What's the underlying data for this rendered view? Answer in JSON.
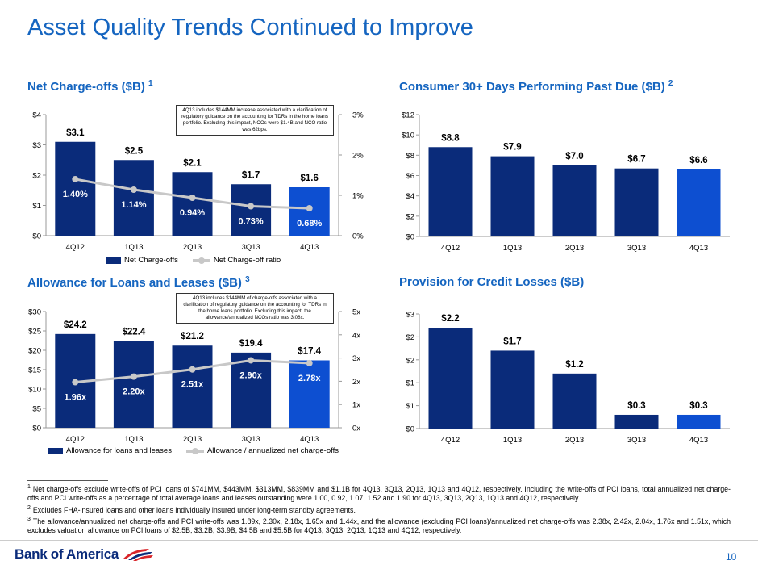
{
  "title": "Asset Quality Trends Continued to Improve",
  "colors": {
    "bar": "#0a2b7a",
    "bar_highlight": "#0d4fd1",
    "line": "#c8c8c8",
    "title": "#1565c0"
  },
  "sections": {
    "nco": {
      "title": "Net Charge-offs ($B)",
      "sup": "1"
    },
    "past_due": {
      "title": "Consumer 30+ Days Performing Past Due ($B)",
      "sup": "2"
    },
    "allowance": {
      "title": "Allowance for Loans and Leases ($B)",
      "sup": "3"
    },
    "provision": {
      "title": "Provision for Credit Losses ($B)",
      "sup": ""
    }
  },
  "callouts": {
    "nco": "4Q13 includes $144MM increase associated with a clarification of regulatory guidance on the accounting for TDRs in the home loans portfolio. Excluding this impact, NCOs were $1.4B and NCO ratio was 62bps.",
    "allowance": "4Q13 includes $144MM of charge-offs associated with a clarification of regulatory guidance on the accounting for TDRs in the home loans portfolio. Excluding this impact, the allowance/annualized NCOs ratio was 3.08x."
  },
  "chart_data": [
    {
      "id": "nco",
      "type": "bar",
      "categories": [
        "4Q12",
        "1Q13",
        "2Q13",
        "3Q13",
        "4Q13"
      ],
      "values": [
        3.1,
        2.5,
        2.1,
        1.7,
        1.6
      ],
      "value_labels": [
        "$3.1",
        "$2.5",
        "$2.1",
        "$1.7",
        "$1.6"
      ],
      "ylim": [
        0,
        4
      ],
      "yticks": [
        "$0",
        "$1",
        "$2",
        "$3",
        "$4"
      ],
      "secondary": {
        "type": "line",
        "values": [
          1.4,
          1.14,
          0.94,
          0.73,
          0.68
        ],
        "value_labels": [
          "1.40%",
          "1.14%",
          "0.94%",
          "0.73%",
          "0.68%"
        ],
        "ylim": [
          0,
          3
        ],
        "yticks": [
          "0%",
          "1%",
          "2%",
          "3%"
        ]
      },
      "legend": [
        "Net Charge-offs",
        "Net Charge-off ratio"
      ]
    },
    {
      "id": "past_due",
      "type": "bar",
      "categories": [
        "4Q12",
        "1Q13",
        "2Q13",
        "3Q13",
        "4Q13"
      ],
      "values": [
        8.8,
        7.9,
        7.0,
        6.7,
        6.6
      ],
      "value_labels": [
        "$8.8",
        "$7.9",
        "$7.0",
        "$6.7",
        "$6.6"
      ],
      "ylim": [
        0,
        12
      ],
      "yticks": [
        "$0",
        "$2",
        "$4",
        "$6",
        "$8",
        "$10",
        "$12"
      ]
    },
    {
      "id": "allowance",
      "type": "bar",
      "categories": [
        "4Q12",
        "1Q13",
        "2Q13",
        "3Q13",
        "4Q13"
      ],
      "values": [
        24.2,
        22.4,
        21.2,
        19.4,
        17.4
      ],
      "value_labels": [
        "$24.2",
        "$22.4",
        "$21.2",
        "$19.4",
        "$17.4"
      ],
      "ylim": [
        0,
        30
      ],
      "yticks": [
        "$0",
        "$5",
        "$10",
        "$15",
        "$20",
        "$25",
        "$30"
      ],
      "secondary": {
        "type": "line",
        "values": [
          1.96,
          2.2,
          2.51,
          2.9,
          2.78
        ],
        "value_labels": [
          "1.96x",
          "2.20x",
          "2.51x",
          "2.90x",
          "2.78x"
        ],
        "ylim": [
          0,
          5
        ],
        "yticks": [
          "0x",
          "1x",
          "2x",
          "3x",
          "4x",
          "5x"
        ]
      },
      "legend": [
        "Allowance for loans and leases",
        "Allowance / annualized net charge-offs"
      ]
    },
    {
      "id": "provision",
      "type": "bar",
      "categories": [
        "4Q12",
        "1Q13",
        "2Q13",
        "3Q13",
        "4Q13"
      ],
      "values": [
        2.2,
        1.7,
        1.2,
        0.3,
        0.3
      ],
      "value_labels": [
        "$2.2",
        "$1.7",
        "$1.2",
        "$0.3",
        "$0.3"
      ],
      "ylim": [
        0,
        2.5
      ],
      "yticks": [
        "$0",
        "$1",
        "$1",
        "$2",
        "$2",
        "$3"
      ]
    }
  ],
  "footnotes": [
    {
      "num": "1",
      "text": "Net charge-offs exclude write-offs of PCI loans of $741MM, $443MM, $313MM, $839MM and $1.1B for 4Q13, 3Q13, 2Q13, 1Q13 and 4Q12, respectively. Including the write-offs of PCI loans, total annualized net charge-offs and PCI write-offs as a percentage of total average loans and leases outstanding were 1.00, 0.92, 1.07, 1.52 and 1.90 for 4Q13, 3Q13, 2Q13, 1Q13 and 4Q12, respectively."
    },
    {
      "num": "2",
      "text": "Excludes FHA-insured loans and other loans individually insured under long-term standby agreements."
    },
    {
      "num": "3",
      "text": "The allowance/annualized net charge-offs and PCI write-offs was 1.89x, 2.30x, 2.18x, 1.65x and 1.44x, and the allowance (excluding PCI loans)/annualized net charge-offs was 2.38x, 2.42x, 2.04x, 1.76x and 1.51x, which excludes valuation allowance on PCI loans of $2.5B, $3.2B, $3.9B, $4.5B and $5.5B for 4Q13, 3Q13, 2Q13, 1Q13 and 4Q12, respectively."
    }
  ],
  "logo_text": "Bank of America",
  "page_number": "10"
}
